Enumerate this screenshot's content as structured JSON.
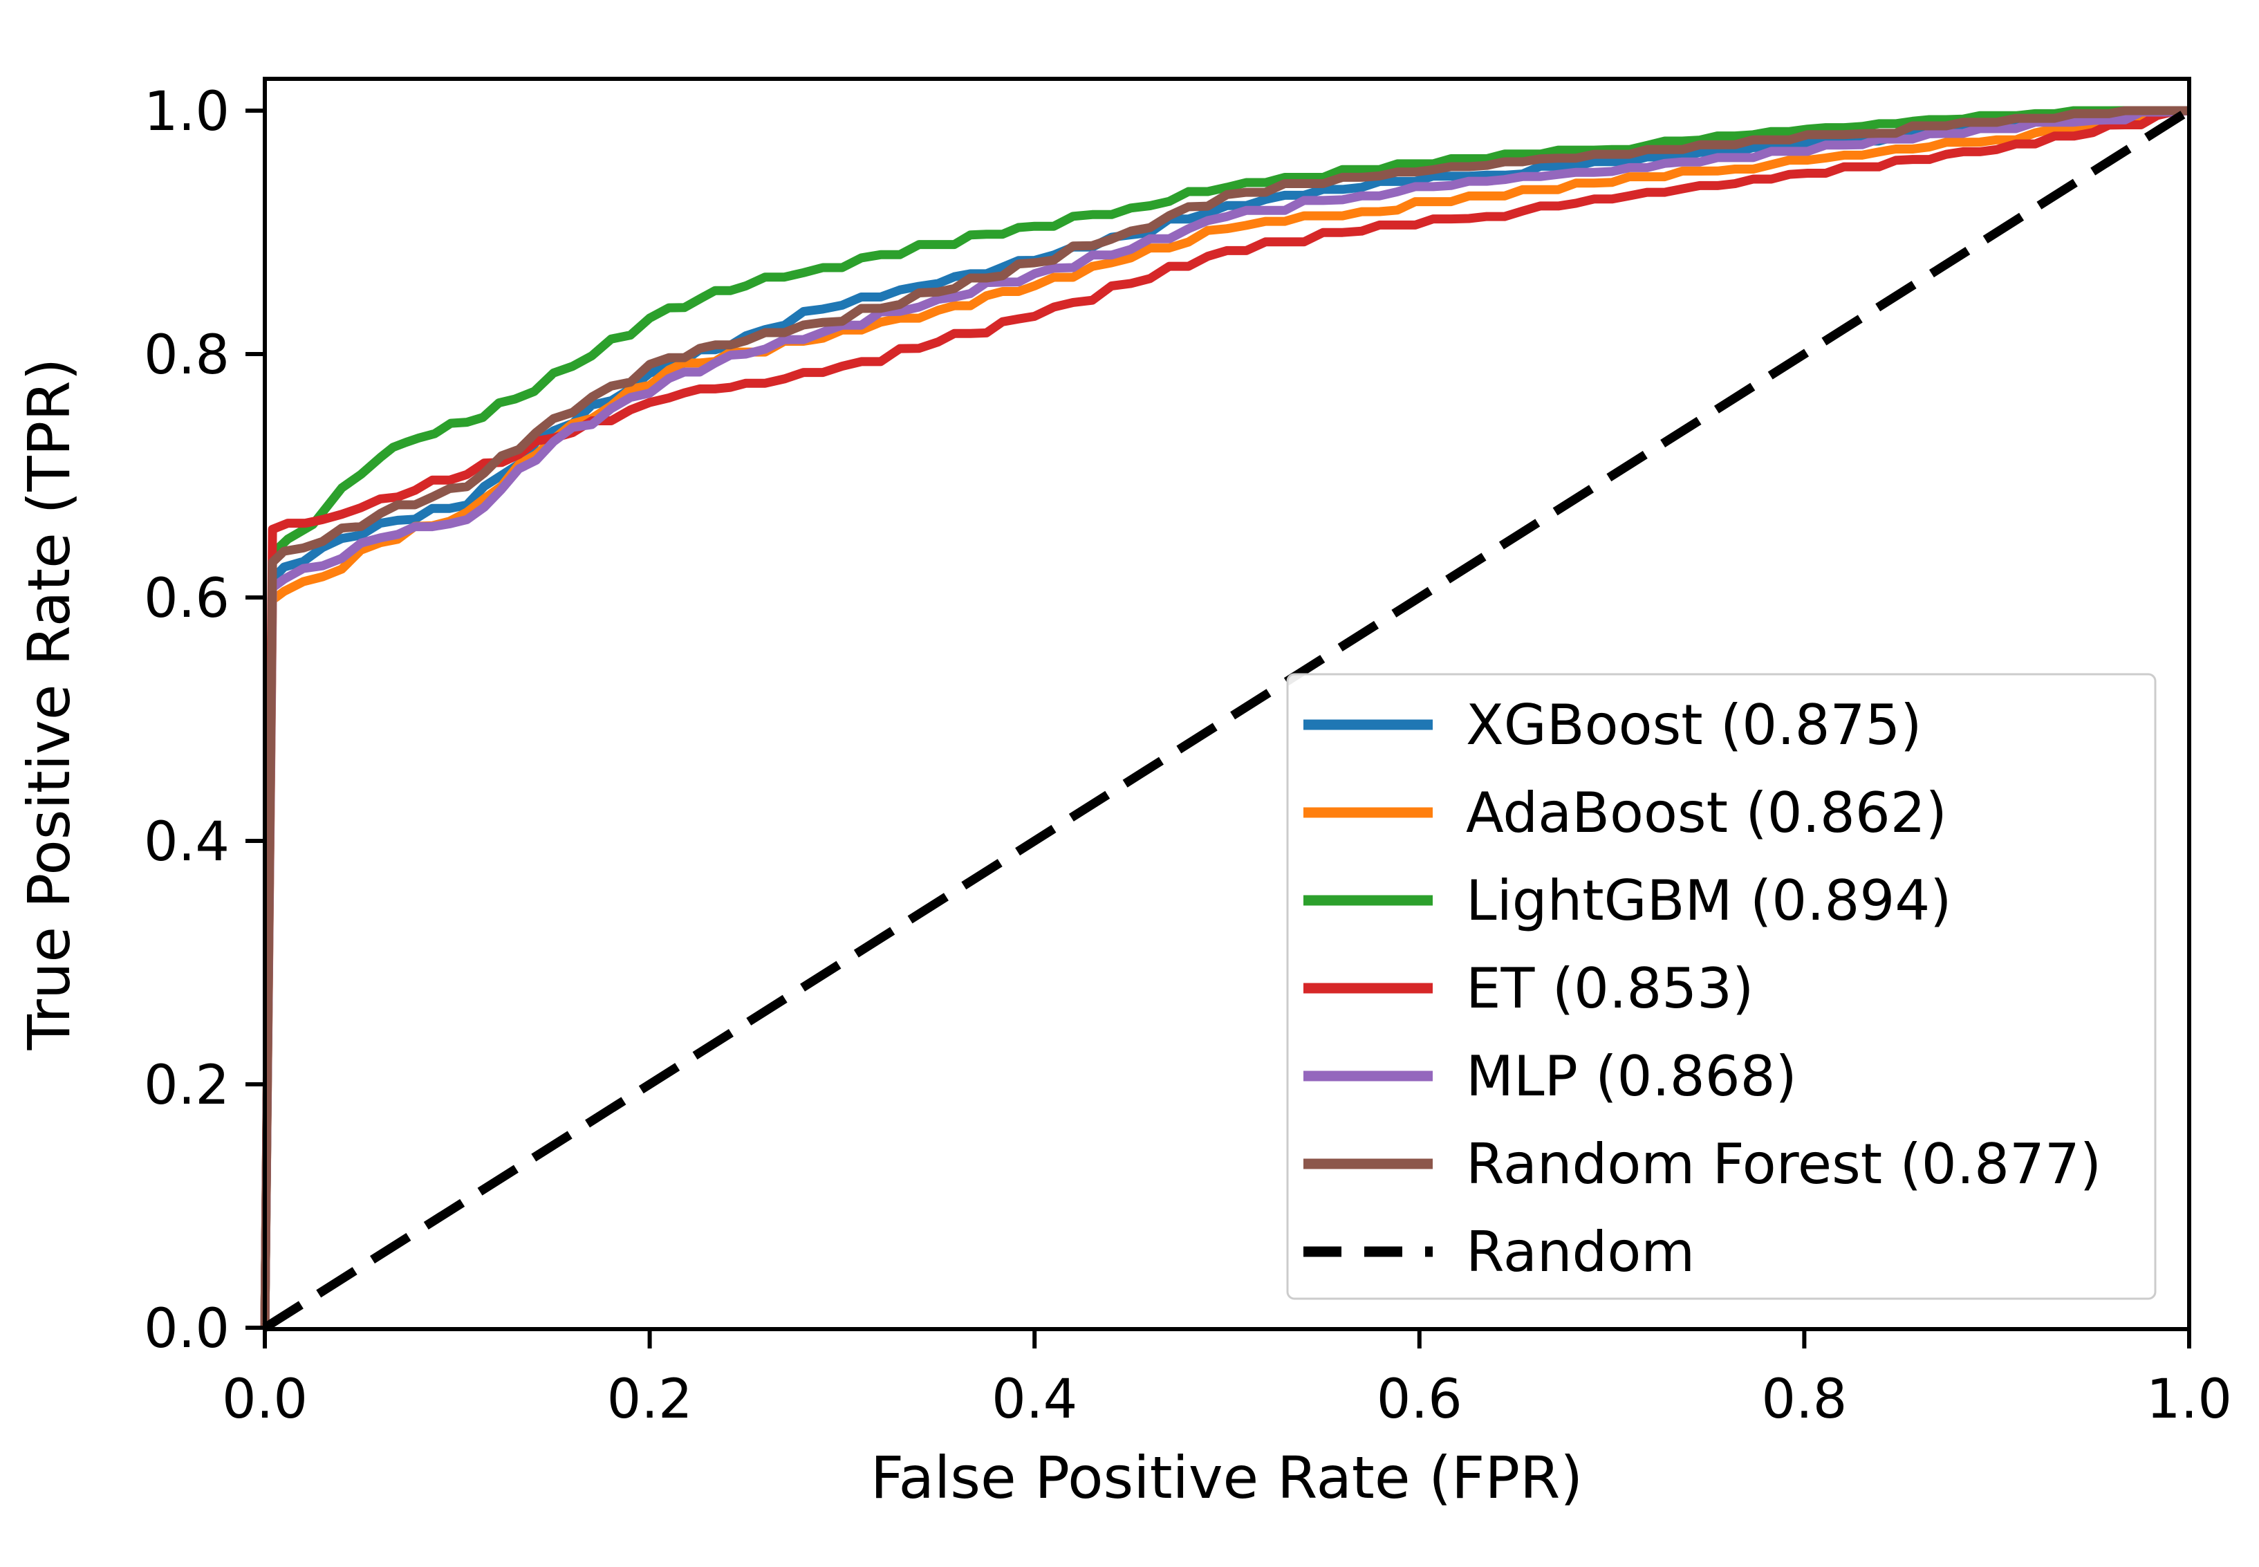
{
  "figure": {
    "background_color": "#ffffff",
    "spine_color": "#000000",
    "legend_border_color": "#cccccc",
    "legend_background": "#ffffff"
  },
  "chart_data": {
    "type": "line",
    "title": "",
    "xlabel": "False Positive Rate (FPR)",
    "ylabel": "True Positive Rate (TPR)",
    "xlim": [
      0.0,
      1.0
    ],
    "ylim": [
      0.0,
      1.027
    ],
    "x_ticks": [
      0.0,
      0.2,
      0.4,
      0.6,
      0.8,
      1.0
    ],
    "y_ticks": [
      0.0,
      0.2,
      0.4,
      0.6,
      0.8,
      1.0
    ],
    "x_tick_labels": [
      "0.0",
      "0.2",
      "0.4",
      "0.6",
      "0.8",
      "1.0"
    ],
    "y_tick_labels": [
      "0.0",
      "0.2",
      "0.4",
      "0.6",
      "0.8",
      "1.0"
    ],
    "grid": false,
    "legend_position": "lower-right-inside",
    "series": [
      {
        "id": "xgboost",
        "name": "XGBoost",
        "auc": 0.875,
        "label": "XGBoost (0.875)",
        "color": "#1f77b4",
        "line_style": "solid",
        "points": [
          [
            0,
            0
          ],
          [
            0.004,
            0.615
          ],
          [
            0.01,
            0.625
          ],
          [
            0.03,
            0.641
          ],
          [
            0.06,
            0.661
          ],
          [
            0.105,
            0.676
          ],
          [
            0.15,
            0.737
          ],
          [
            0.21,
            0.79
          ],
          [
            0.25,
            0.815
          ],
          [
            0.29,
            0.837
          ],
          [
            0.35,
            0.858
          ],
          [
            0.4,
            0.877
          ],
          [
            0.45,
            0.898
          ],
          [
            0.5,
            0.922
          ],
          [
            0.57,
            0.937
          ],
          [
            0.635,
            0.947
          ],
          [
            0.7,
            0.956
          ],
          [
            0.764,
            0.965
          ],
          [
            0.83,
            0.975
          ],
          [
            0.9,
            0.988
          ],
          [
            0.95,
            0.994
          ],
          [
            1,
            1
          ]
        ]
      },
      {
        "id": "adaboost",
        "name": "AdaBoost",
        "auc": 0.862,
        "label": "AdaBoost (0.862)",
        "color": "#ff7f0e",
        "line_style": "solid",
        "points": [
          [
            0,
            0
          ],
          [
            0.004,
            0.598
          ],
          [
            0.01,
            0.605
          ],
          [
            0.03,
            0.617
          ],
          [
            0.06,
            0.645
          ],
          [
            0.105,
            0.67
          ],
          [
            0.15,
            0.73
          ],
          [
            0.21,
            0.787
          ],
          [
            0.25,
            0.801
          ],
          [
            0.29,
            0.813
          ],
          [
            0.35,
            0.836
          ],
          [
            0.4,
            0.856
          ],
          [
            0.45,
            0.879
          ],
          [
            0.5,
            0.903
          ],
          [
            0.57,
            0.917
          ],
          [
            0.635,
            0.928
          ],
          [
            0.7,
            0.941
          ],
          [
            0.764,
            0.952
          ],
          [
            0.83,
            0.963
          ],
          [
            0.9,
            0.976
          ],
          [
            0.95,
            0.988
          ],
          [
            1,
            1
          ]
        ]
      },
      {
        "id": "lightgbm",
        "name": "LightGBM",
        "auc": 0.894,
        "label": "LightGBM (0.894)",
        "color": "#2ca02c",
        "line_style": "solid",
        "points": [
          [
            0,
            0
          ],
          [
            0.004,
            0.636
          ],
          [
            0.012,
            0.648
          ],
          [
            0.025,
            0.66
          ],
          [
            0.04,
            0.69
          ],
          [
            0.06,
            0.715
          ],
          [
            0.08,
            0.731
          ],
          [
            0.105,
            0.744
          ],
          [
            0.13,
            0.763
          ],
          [
            0.16,
            0.79
          ],
          [
            0.21,
            0.838
          ],
          [
            0.25,
            0.856
          ],
          [
            0.29,
            0.871
          ],
          [
            0.35,
            0.89
          ],
          [
            0.4,
            0.905
          ],
          [
            0.45,
            0.92
          ],
          [
            0.5,
            0.937
          ],
          [
            0.57,
            0.95
          ],
          [
            0.635,
            0.96
          ],
          [
            0.7,
            0.968
          ],
          [
            0.764,
            0.978
          ],
          [
            0.83,
            0.987
          ],
          [
            0.9,
            0.994
          ],
          [
            0.95,
            0.998
          ],
          [
            1,
            1
          ]
        ]
      },
      {
        "id": "et",
        "name": "ET",
        "auc": 0.853,
        "label": "ET (0.853)",
        "color": "#d62728",
        "line_style": "solid",
        "points": [
          [
            0,
            0
          ],
          [
            0.004,
            0.656
          ],
          [
            0.012,
            0.661
          ],
          [
            0.03,
            0.664
          ],
          [
            0.06,
            0.681
          ],
          [
            0.105,
            0.701
          ],
          [
            0.15,
            0.731
          ],
          [
            0.21,
            0.764
          ],
          [
            0.25,
            0.776
          ],
          [
            0.29,
            0.784
          ],
          [
            0.35,
            0.81
          ],
          [
            0.4,
            0.831
          ],
          [
            0.45,
            0.858
          ],
          [
            0.5,
            0.885
          ],
          [
            0.57,
            0.901
          ],
          [
            0.635,
            0.913
          ],
          [
            0.7,
            0.927
          ],
          [
            0.764,
            0.94
          ],
          [
            0.83,
            0.953
          ],
          [
            0.9,
            0.968
          ],
          [
            0.95,
            0.982
          ],
          [
            1,
            1
          ]
        ]
      },
      {
        "id": "mlp",
        "name": "MLP",
        "auc": 0.868,
        "label": "MLP (0.868)",
        "color": "#9467bd",
        "line_style": "solid",
        "points": [
          [
            0,
            0
          ],
          [
            0.004,
            0.608
          ],
          [
            0.01,
            0.615
          ],
          [
            0.03,
            0.626
          ],
          [
            0.06,
            0.649
          ],
          [
            0.105,
            0.664
          ],
          [
            0.15,
            0.728
          ],
          [
            0.21,
            0.78
          ],
          [
            0.25,
            0.8
          ],
          [
            0.29,
            0.818
          ],
          [
            0.35,
            0.845
          ],
          [
            0.4,
            0.866
          ],
          [
            0.45,
            0.886
          ],
          [
            0.5,
            0.913
          ],
          [
            0.57,
            0.93
          ],
          [
            0.635,
            0.941
          ],
          [
            0.7,
            0.95
          ],
          [
            0.764,
            0.961
          ],
          [
            0.83,
            0.972
          ],
          [
            0.9,
            0.985
          ],
          [
            0.95,
            0.992
          ],
          [
            1,
            1
          ]
        ]
      },
      {
        "id": "random-forest",
        "name": "Random Forest",
        "auc": 0.877,
        "label": "Random Forest (0.877)",
        "color": "#8c564b",
        "line_style": "solid",
        "points": [
          [
            0,
            0
          ],
          [
            0.004,
            0.629
          ],
          [
            0.01,
            0.638
          ],
          [
            0.03,
            0.646
          ],
          [
            0.06,
            0.669
          ],
          [
            0.105,
            0.691
          ],
          [
            0.15,
            0.747
          ],
          [
            0.21,
            0.797
          ],
          [
            0.25,
            0.811
          ],
          [
            0.29,
            0.826
          ],
          [
            0.35,
            0.851
          ],
          [
            0.4,
            0.875
          ],
          [
            0.45,
            0.901
          ],
          [
            0.5,
            0.931
          ],
          [
            0.57,
            0.944
          ],
          [
            0.635,
            0.955
          ],
          [
            0.7,
            0.963
          ],
          [
            0.764,
            0.972
          ],
          [
            0.83,
            0.981
          ],
          [
            0.9,
            0.99
          ],
          [
            0.95,
            0.995
          ],
          [
            1,
            1
          ]
        ]
      },
      {
        "id": "random",
        "name": "Random",
        "auc": null,
        "label": "Random",
        "color": "#000000",
        "line_style": "dashed",
        "points": [
          [
            0,
            0
          ],
          [
            1,
            1
          ]
        ]
      }
    ]
  }
}
